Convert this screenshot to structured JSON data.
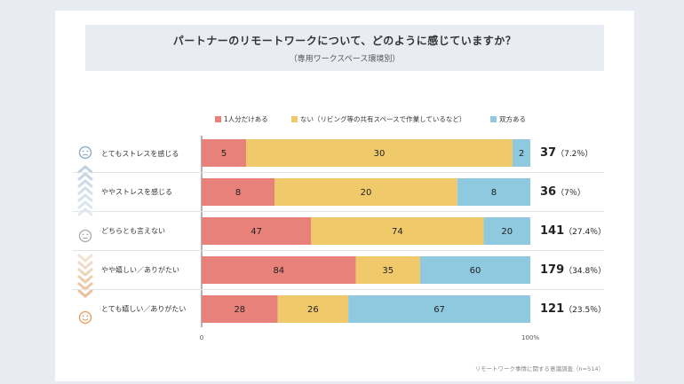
{
  "title": "パートナーのリモートワークについて、どのように感じていますか？",
  "subtitle": "（専用ワークスペース環境別）",
  "footnote": "リモートワーク事情に関する意識調査（n=514）",
  "colors": {
    "alone": "#e8817a",
    "none": "#f0c96a",
    "both": "#8ec9df",
    "negative_icon": "#8aa3c6",
    "neutral_icon": "#aaaaaa",
    "positive_icon": "#e39a5e"
  },
  "chart_data": {
    "type": "bar",
    "orientation": "horizontal",
    "stacked": "100%",
    "categories": [
      "とてもストレスを感じる",
      "ややストレスを感じる",
      "どちらとも言えない",
      "やや嬉しい／ありがたい",
      "とても嬉しい／ありがたい"
    ],
    "series": [
      {
        "name": "1人分だけある",
        "values": [
          5,
          8,
          47,
          84,
          28
        ]
      },
      {
        "name": "ない（リビング等の共有スペースで作業しているなど）",
        "values": [
          30,
          20,
          74,
          35,
          26
        ]
      },
      {
        "name": "双方ある",
        "values": [
          2,
          8,
          20,
          60,
          67
        ]
      }
    ],
    "totals": [
      37,
      36,
      141,
      179,
      121
    ],
    "total_percents": [
      "（7.2％）",
      "（7％）",
      "（27.4％）",
      "（34.8％）",
      "（23.5％）"
    ],
    "x_ticks": [
      "0",
      "100%"
    ],
    "xlim": [
      0,
      100
    ],
    "legend_position": "top",
    "grid": false,
    "icons": [
      "stressed-face-icon",
      "chevron-up-icon",
      "neutral-face-icon",
      "chevron-down-icon",
      "happy-face-icon"
    ]
  }
}
